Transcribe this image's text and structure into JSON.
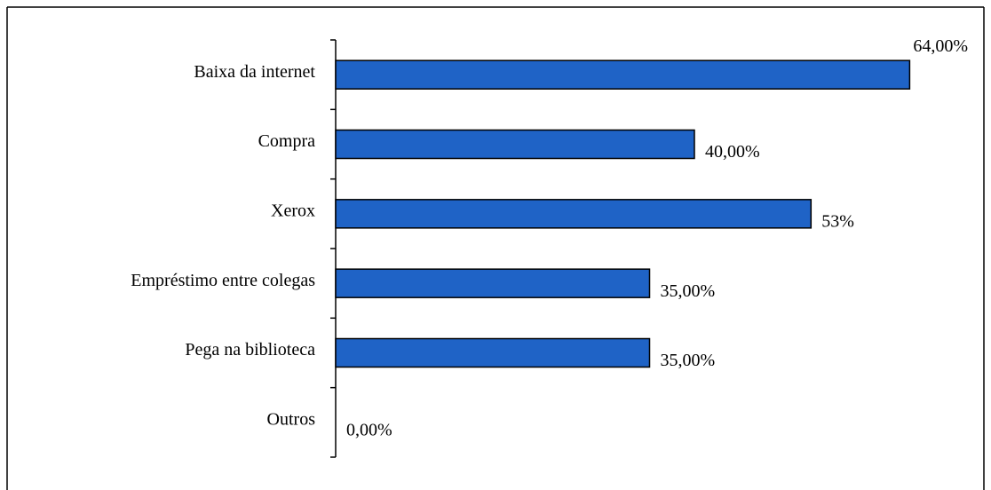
{
  "chart_data": {
    "type": "bar",
    "orientation": "horizontal",
    "categories": [
      "Baixa da internet",
      "Compra",
      "Xerox",
      "Empréstimo entre colegas",
      "Pega na biblioteca",
      "Outros"
    ],
    "values": [
      64,
      40,
      53,
      35,
      35,
      0
    ],
    "value_labels": [
      "64,00%",
      "40,00%",
      "53%",
      "35,00%",
      "35,00%",
      "0,00%"
    ],
    "color": "#1f63c6",
    "xlim": [
      0,
      70
    ]
  }
}
